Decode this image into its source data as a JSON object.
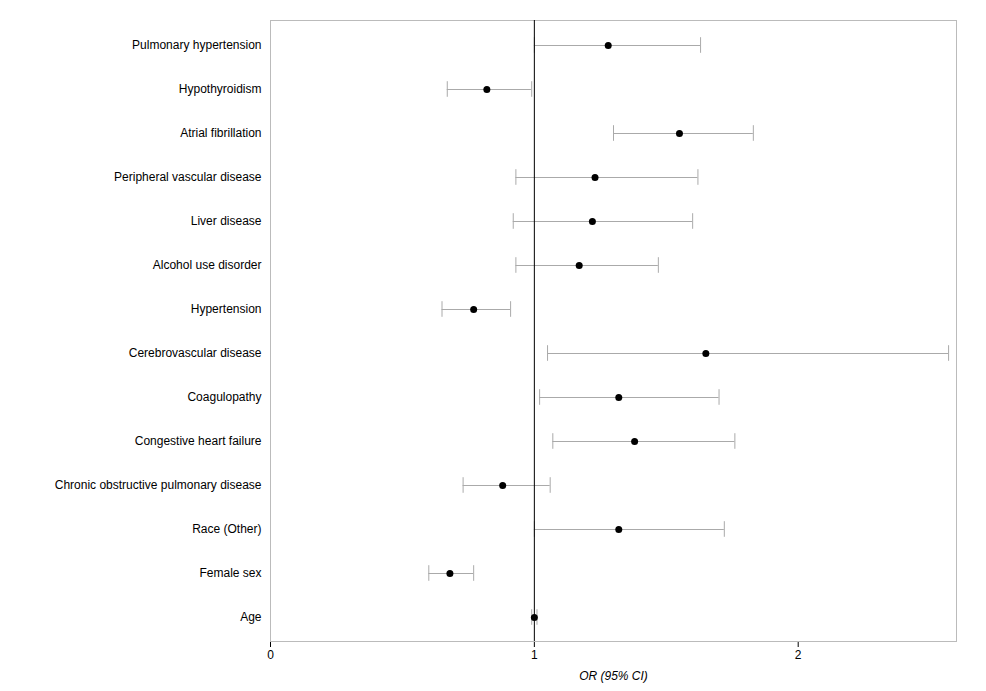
{
  "chart_data": {
    "type": "forest",
    "xlabel": "OR (95% CI)",
    "categories": [
      "Pulmonary hypertension",
      "Hypothyroidism",
      "Atrial fibrillation",
      "Peripheral vascular disease",
      "Liver disease",
      "Alcohol use disorder",
      "Hypertension",
      "Cerebrovascular disease",
      "Coagulopathy",
      "Congestive heart failure",
      "Chronic obstructive pulmonary disease",
      "Race (Other)",
      "Female sex",
      "Age"
    ],
    "values": [
      1.28,
      0.82,
      1.55,
      1.23,
      1.22,
      1.17,
      0.77,
      1.65,
      1.32,
      1.38,
      0.88,
      1.32,
      0.68,
      1.0
    ],
    "ci_low": [
      1.0,
      0.67,
      1.3,
      0.93,
      0.92,
      0.93,
      0.65,
      1.05,
      1.02,
      1.07,
      0.73,
      1.0,
      0.6,
      0.99
    ],
    "ci_high": [
      1.63,
      0.99,
      1.83,
      1.62,
      1.6,
      1.47,
      0.91,
      2.57,
      1.7,
      1.76,
      1.06,
      1.72,
      0.77,
      1.01
    ],
    "ref_line": 1.0,
    "xlim": [
      0,
      2.6
    ],
    "xticks": [
      0,
      1,
      2
    ],
    "color": "black",
    "grid": false
  }
}
